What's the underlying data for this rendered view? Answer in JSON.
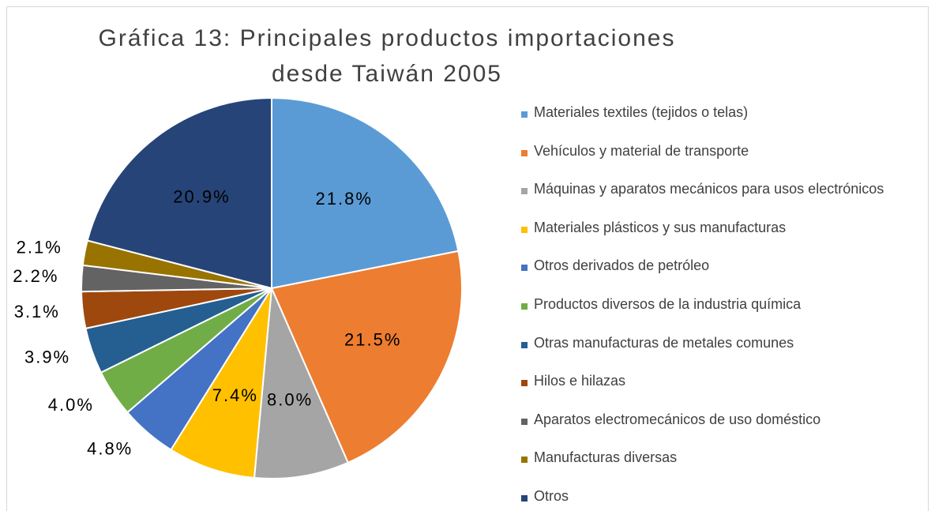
{
  "chart_data": {
    "type": "pie",
    "title": "Gráfica 13: Principales productos importaciones desde Taiwán 2005",
    "categories": [
      "Materiales textiles (tejidos o telas)",
      "Vehículos y material de transporte",
      "Máquinas y aparatos mecánicos para usos electrónicos",
      "Materiales plásticos y sus manufacturas",
      "Otros derivados de petróleo",
      "Productos diversos de la industria química",
      "Otras manufacturas de metales comunes",
      "Hilos e hilazas",
      "Aparatos electromecánicos de uso doméstico",
      "Manufacturas diversas",
      "Otros"
    ],
    "values": [
      21.8,
      21.5,
      8.0,
      7.4,
      4.8,
      4.0,
      3.9,
      3.1,
      2.2,
      2.1,
      20.9
    ],
    "value_labels": [
      "21.8%",
      "21.5%",
      "8.0%",
      "7.4%",
      "4.8%",
      "4.0%",
      "3.9%",
      "3.1%",
      "2.2%",
      "2.1%",
      "20.9%"
    ],
    "colors": [
      "#5b9bd5",
      "#ed7d31",
      "#a5a5a5",
      "#ffc000",
      "#4472c4",
      "#70ad47",
      "#255e91",
      "#9e480e",
      "#636363",
      "#997300",
      "#264478"
    ],
    "legend": "right"
  }
}
